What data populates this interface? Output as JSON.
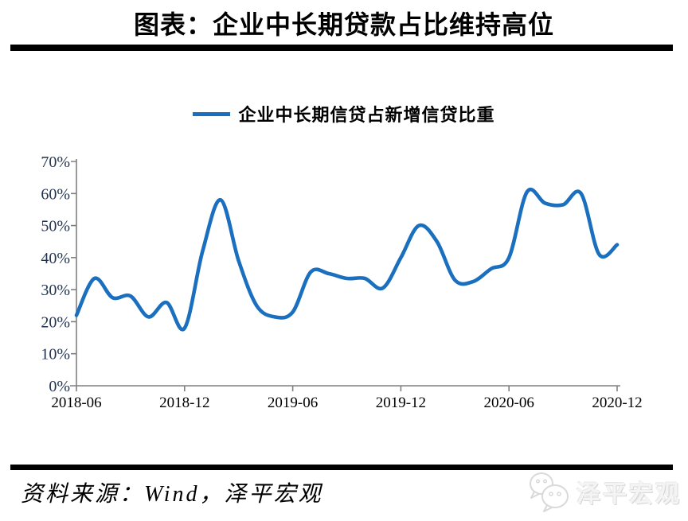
{
  "header": {
    "title": "图表：企业中长期贷款占比维持高位"
  },
  "legend": {
    "label": "企业中长期信贷占新增信贷比重"
  },
  "footer": {
    "source_text": "资料来源：Wind，泽平宏观",
    "watermark_text": "泽平宏观",
    "watermark_icon": "wechat-icon"
  },
  "colors": {
    "line": "#1B6FBF",
    "axis": "#808080",
    "y_labels": "#1f3250",
    "x_labels": "#000000",
    "rule": "#000000",
    "watermark": "#e9e9e9"
  },
  "chart_data": {
    "type": "line",
    "title": "企业中长期信贷占新增信贷比重",
    "x": [
      "2018-06",
      "2018-07",
      "2018-08",
      "2018-09",
      "2018-10",
      "2018-11",
      "2018-12",
      "2019-01",
      "2019-02",
      "2019-03",
      "2019-04",
      "2019-05",
      "2019-06",
      "2019-07",
      "2019-08",
      "2019-09",
      "2019-10",
      "2019-11",
      "2019-12",
      "2020-01",
      "2020-02",
      "2020-03",
      "2020-04",
      "2020-05",
      "2020-06",
      "2020-07",
      "2020-08",
      "2020-09",
      "2020-10",
      "2020-11",
      "2020-12"
    ],
    "values": [
      22,
      33.5,
      27.5,
      28,
      21.5,
      26,
      18,
      42,
      58,
      39,
      25,
      21.5,
      23,
      35.5,
      35,
      33.5,
      33.5,
      30.5,
      40,
      50,
      45,
      33,
      32.5,
      36.5,
      40,
      60.5,
      57,
      56.5,
      60,
      41,
      44
    ],
    "y_unit": "%",
    "ylim": [
      0,
      70
    ],
    "y_tick_labels": [
      "0%",
      "10%",
      "20%",
      "30%",
      "40%",
      "50%",
      "60%",
      "70%"
    ],
    "x_tick_labels": [
      "2018-06",
      "2018-12",
      "2019-06",
      "2019-12",
      "2020-06",
      "2020-12"
    ],
    "xlabel": "",
    "ylabel": "",
    "grid": false,
    "smooth": true,
    "legend_position": "top-center",
    "line_color": "#1B6FBF",
    "axis_color": "#808080"
  }
}
